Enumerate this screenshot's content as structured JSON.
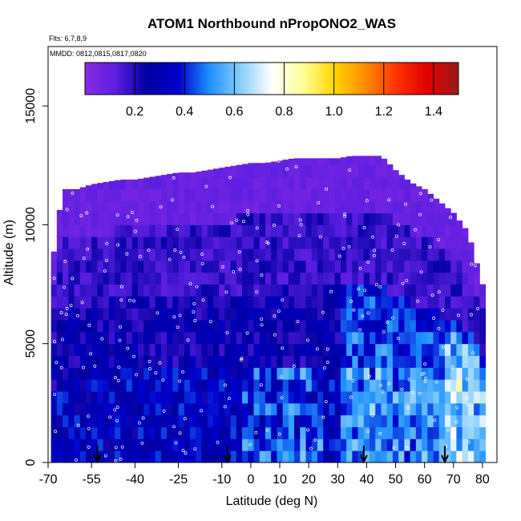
{
  "chart_data": {
    "type": "heatmap",
    "title": "ATOM1 Northbound nPropONO2_WAS",
    "flights_note": "Flts: 6,7,8,9",
    "dates_note": "MMDD: 0812,0815,0817,0820",
    "xlabel": "Latitude (deg N)",
    "ylabel": "Altitude (m)",
    "xlim": [
      -70,
      85
    ],
    "ylim": [
      0,
      17500
    ],
    "x_ticks": [
      "-70",
      "-55",
      "-40",
      "-25",
      "-10",
      "0",
      "10",
      "20",
      "30",
      "40",
      "50",
      "60",
      "70",
      "80"
    ],
    "x_tick_values": [
      -70,
      -55,
      -40,
      -25,
      -10,
      0,
      10,
      20,
      30,
      40,
      50,
      60,
      70,
      80
    ],
    "y_ticks": [
      "0",
      "5000",
      "10000",
      "15000"
    ],
    "y_tick_values": [
      0,
      5000,
      10000,
      15000
    ],
    "colorbar": {
      "range": [
        0,
        1.5
      ],
      "tick_labels": [
        "0.2",
        "0.4",
        "0.6",
        "0.8",
        "1.0",
        "1.2",
        "1.4"
      ],
      "tick_values": [
        0.2,
        0.4,
        0.6,
        0.8,
        1.0,
        1.2,
        1.4
      ],
      "colors": [
        "#8a2be2",
        "#5a1ee0",
        "#0000a0",
        "#0000cd",
        "#1e90ff",
        "#87cefa",
        "#ffffff",
        "#ffff99",
        "#ffd700",
        "#ff8c00",
        "#ff3300",
        "#e00000",
        "#9c1a1a"
      ]
    },
    "profile_envelope": {
      "latitudes": [
        -69,
        -65,
        -60,
        -55,
        -50,
        -45,
        -40,
        -35,
        -30,
        -25,
        -20,
        -15,
        -10,
        -5,
        0,
        5,
        10,
        15,
        20,
        25,
        30,
        35,
        40,
        45,
        50,
        55,
        60,
        65,
        70,
        75,
        80
      ],
      "top_altitudes": [
        8000,
        11500,
        11500,
        11700,
        11800,
        11900,
        11900,
        12000,
        12100,
        12200,
        12200,
        12300,
        12400,
        12500,
        12600,
        12600,
        12700,
        12800,
        12800,
        12800,
        12800,
        12900,
        12900,
        12900,
        12300,
        11800,
        11500,
        11000,
        10500,
        9700,
        7500
      ]
    },
    "flight_markers_lat": [
      -53,
      -8,
      39,
      67
    ],
    "value_regimes": [
      {
        "region": "upper troposphere (above ~10000 m)",
        "approx_value": 0.08
      },
      {
        "region": "mid troposphere",
        "approx_value": 0.2
      },
      {
        "region": "lower troposphere, southern hemisphere",
        "approx_value": 0.3
      },
      {
        "region": "lower troposphere, northern mid-latitudes",
        "approx_value": 0.45
      },
      {
        "region": "near-surface patches",
        "approx_value": 0.55
      }
    ]
  }
}
